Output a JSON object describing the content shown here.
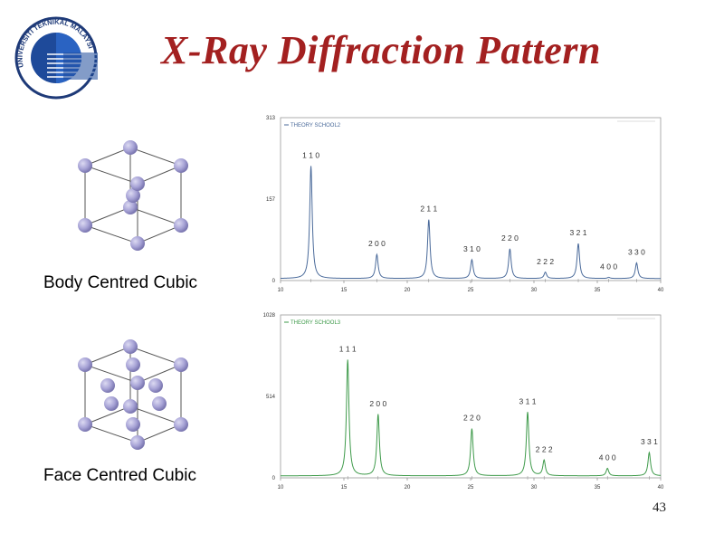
{
  "slide": {
    "title": "X-Ray Diffraction Pattern",
    "logo_text": "UNIVERSITI TEKNIKAL MALAYSIA MELAKA",
    "page_number": "43"
  },
  "structures": [
    {
      "name": "Body Centred Cubic",
      "type": "bcc"
    },
    {
      "name": "Face Centred Cubic",
      "type": "fcc"
    }
  ],
  "colors": {
    "title": "#a32020",
    "atom": "#a7a3d6",
    "bcc_line": "#4a6a9a",
    "fcc_line": "#3e9a4a"
  },
  "chart_data": [
    {
      "type": "line",
      "legend": "THEORY SCHOOL2",
      "y_ticks": [
        "313",
        "157",
        "0"
      ],
      "ylim": [
        0,
        313
      ],
      "xlim": [
        10,
        40
      ],
      "x_ticks": [
        "10",
        "15",
        "20",
        "25",
        "30",
        "35",
        "40"
      ],
      "peaks": [
        {
          "x": 12.4,
          "y": 220,
          "label": "1 1 0"
        },
        {
          "x": 17.6,
          "y": 50,
          "label": "2 0 0"
        },
        {
          "x": 21.7,
          "y": 117,
          "label": "2 1 1"
        },
        {
          "x": 25.1,
          "y": 40,
          "label": "3 1 0"
        },
        {
          "x": 28.1,
          "y": 61,
          "label": "2 2 0"
        },
        {
          "x": 30.9,
          "y": 16,
          "label": "2 2 2"
        },
        {
          "x": 33.5,
          "y": 71,
          "label": "3 2 1"
        },
        {
          "x": 35.9,
          "y": 6,
          "label": "4 0 0"
        },
        {
          "x": 38.1,
          "y": 34,
          "label": "3 3 0"
        }
      ]
    },
    {
      "type": "line",
      "legend": "THEORY SCHOOL3",
      "y_ticks": [
        "1028",
        "514",
        "0"
      ],
      "ylim": [
        0,
        1028
      ],
      "xlim": [
        10,
        40
      ],
      "x_ticks": [
        "10",
        "15",
        "20",
        "25",
        "30",
        "35",
        "40"
      ],
      "peaks": [
        {
          "x": 15.3,
          "y": 745,
          "label": "1 1 1"
        },
        {
          "x": 17.7,
          "y": 400,
          "label": "2 0 0"
        },
        {
          "x": 25.1,
          "y": 310,
          "label": "2 2 0"
        },
        {
          "x": 29.5,
          "y": 415,
          "label": "3 1 1"
        },
        {
          "x": 30.8,
          "y": 110,
          "label": "2 2 2"
        },
        {
          "x": 35.8,
          "y": 60,
          "label": "4 0 0"
        },
        {
          "x": 39.1,
          "y": 160,
          "label": "3 3 1"
        }
      ]
    }
  ]
}
